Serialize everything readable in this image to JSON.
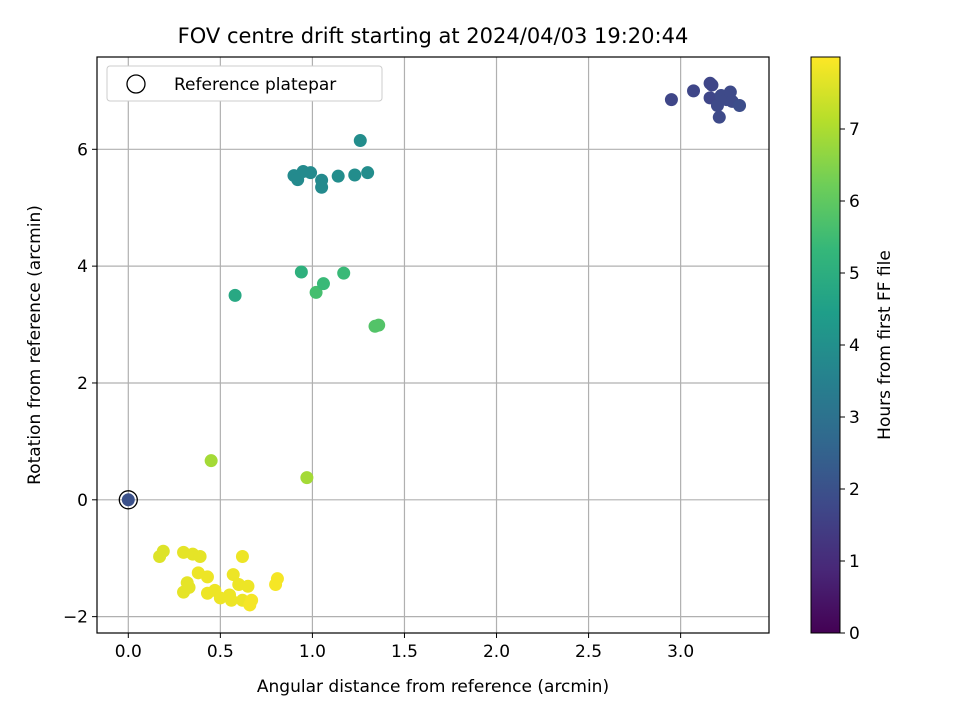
{
  "chart_data": {
    "type": "scatter",
    "title": "FOV centre drift starting at 2024/04/03 19:20:44",
    "xlabel": "Angular distance from reference (arcmin)",
    "ylabel": "Rotation from reference (arcmin)",
    "xlim": [
      -0.17,
      3.48
    ],
    "ylim": [
      -2.28,
      7.58
    ],
    "x_ticks": [
      0.0,
      0.5,
      1.0,
      1.5,
      2.0,
      2.5,
      3.0
    ],
    "x_tick_labels": [
      "0.0",
      "0.5",
      "1.0",
      "1.5",
      "2.0",
      "2.5",
      "3.0"
    ],
    "y_ticks": [
      -2,
      0,
      2,
      4,
      6
    ],
    "y_tick_labels": [
      "−2",
      "0",
      "2",
      "4",
      "6"
    ],
    "grid": true,
    "legend": {
      "position": "top-left",
      "entries": [
        "Reference platepar"
      ]
    },
    "reference_point": {
      "x": 0.0,
      "y": 0.0,
      "hours": 2.0
    },
    "colorbar": {
      "label": "Hours from first FF file",
      "range": [
        0,
        8
      ],
      "ticks": [
        0,
        1,
        2,
        3,
        4,
        5,
        6,
        7
      ],
      "tick_labels": [
        "0",
        "1",
        "2",
        "3",
        "4",
        "5",
        "6",
        "7"
      ],
      "colormap": "viridis",
      "colormap_stops": [
        "#440154",
        "#482878",
        "#3e4989",
        "#31688e",
        "#26828e",
        "#1f9e89",
        "#35b779",
        "#6ece58",
        "#b5de2b",
        "#fde725"
      ]
    },
    "points": [
      {
        "x": 2.95,
        "y": 6.85,
        "hours": 1.7
      },
      {
        "x": 3.07,
        "y": 7.0,
        "hours": 1.7
      },
      {
        "x": 3.16,
        "y": 7.13,
        "hours": 1.7
      },
      {
        "x": 3.17,
        "y": 7.1,
        "hours": 1.7
      },
      {
        "x": 3.16,
        "y": 6.88,
        "hours": 1.7
      },
      {
        "x": 3.2,
        "y": 6.75,
        "hours": 1.8
      },
      {
        "x": 3.21,
        "y": 6.55,
        "hours": 1.8
      },
      {
        "x": 3.22,
        "y": 6.92,
        "hours": 1.8
      },
      {
        "x": 3.25,
        "y": 6.85,
        "hours": 1.8
      },
      {
        "x": 3.27,
        "y": 6.98,
        "hours": 1.8
      },
      {
        "x": 3.28,
        "y": 6.82,
        "hours": 1.8
      },
      {
        "x": 3.32,
        "y": 6.75,
        "hours": 1.9
      },
      {
        "x": 0.9,
        "y": 5.55,
        "hours": 3.8
      },
      {
        "x": 0.92,
        "y": 5.48,
        "hours": 3.8
      },
      {
        "x": 0.95,
        "y": 5.62,
        "hours": 3.8
      },
      {
        "x": 0.99,
        "y": 5.6,
        "hours": 3.8
      },
      {
        "x": 1.05,
        "y": 5.47,
        "hours": 3.8
      },
      {
        "x": 1.05,
        "y": 5.35,
        "hours": 3.8
      },
      {
        "x": 1.14,
        "y": 5.54,
        "hours": 3.9
      },
      {
        "x": 1.23,
        "y": 5.56,
        "hours": 3.9
      },
      {
        "x": 1.26,
        "y": 6.15,
        "hours": 3.9
      },
      {
        "x": 1.3,
        "y": 5.6,
        "hours": 3.9
      },
      {
        "x": 0.58,
        "y": 3.5,
        "hours": 4.8
      },
      {
        "x": 0.94,
        "y": 3.9,
        "hours": 5.1
      },
      {
        "x": 1.02,
        "y": 3.55,
        "hours": 5.6
      },
      {
        "x": 1.06,
        "y": 3.7,
        "hours": 5.4
      },
      {
        "x": 1.17,
        "y": 3.88,
        "hours": 5.4
      },
      {
        "x": 1.34,
        "y": 2.97,
        "hours": 5.8
      },
      {
        "x": 1.36,
        "y": 2.99,
        "hours": 5.8
      },
      {
        "x": 0.45,
        "y": 0.67,
        "hours": 6.9
      },
      {
        "x": 0.97,
        "y": 0.38,
        "hours": 6.9
      },
      {
        "x": 0.17,
        "y": -0.97,
        "hours": 7.6
      },
      {
        "x": 0.19,
        "y": -0.88,
        "hours": 7.6
      },
      {
        "x": 0.3,
        "y": -0.9,
        "hours": 7.7
      },
      {
        "x": 0.35,
        "y": -0.93,
        "hours": 7.7
      },
      {
        "x": 0.39,
        "y": -0.97,
        "hours": 7.7
      },
      {
        "x": 0.3,
        "y": -1.58,
        "hours": 7.7
      },
      {
        "x": 0.32,
        "y": -1.42,
        "hours": 7.7
      },
      {
        "x": 0.33,
        "y": -1.5,
        "hours": 7.7
      },
      {
        "x": 0.38,
        "y": -1.25,
        "hours": 7.8
      },
      {
        "x": 0.43,
        "y": -1.32,
        "hours": 7.8
      },
      {
        "x": 0.43,
        "y": -1.6,
        "hours": 7.8
      },
      {
        "x": 0.47,
        "y": -1.55,
        "hours": 7.8
      },
      {
        "x": 0.5,
        "y": -1.68,
        "hours": 7.8
      },
      {
        "x": 0.55,
        "y": -1.63,
        "hours": 7.8
      },
      {
        "x": 0.56,
        "y": -1.72,
        "hours": 7.8
      },
      {
        "x": 0.57,
        "y": -1.28,
        "hours": 7.8
      },
      {
        "x": 0.6,
        "y": -1.45,
        "hours": 7.8
      },
      {
        "x": 0.62,
        "y": -0.97,
        "hours": 7.8
      },
      {
        "x": 0.62,
        "y": -1.72,
        "hours": 7.8
      },
      {
        "x": 0.65,
        "y": -1.48,
        "hours": 7.8
      },
      {
        "x": 0.66,
        "y": -1.8,
        "hours": 7.9
      },
      {
        "x": 0.67,
        "y": -1.72,
        "hours": 7.9
      },
      {
        "x": 0.8,
        "y": -1.45,
        "hours": 7.9
      },
      {
        "x": 0.81,
        "y": -1.35,
        "hours": 7.9
      }
    ]
  }
}
